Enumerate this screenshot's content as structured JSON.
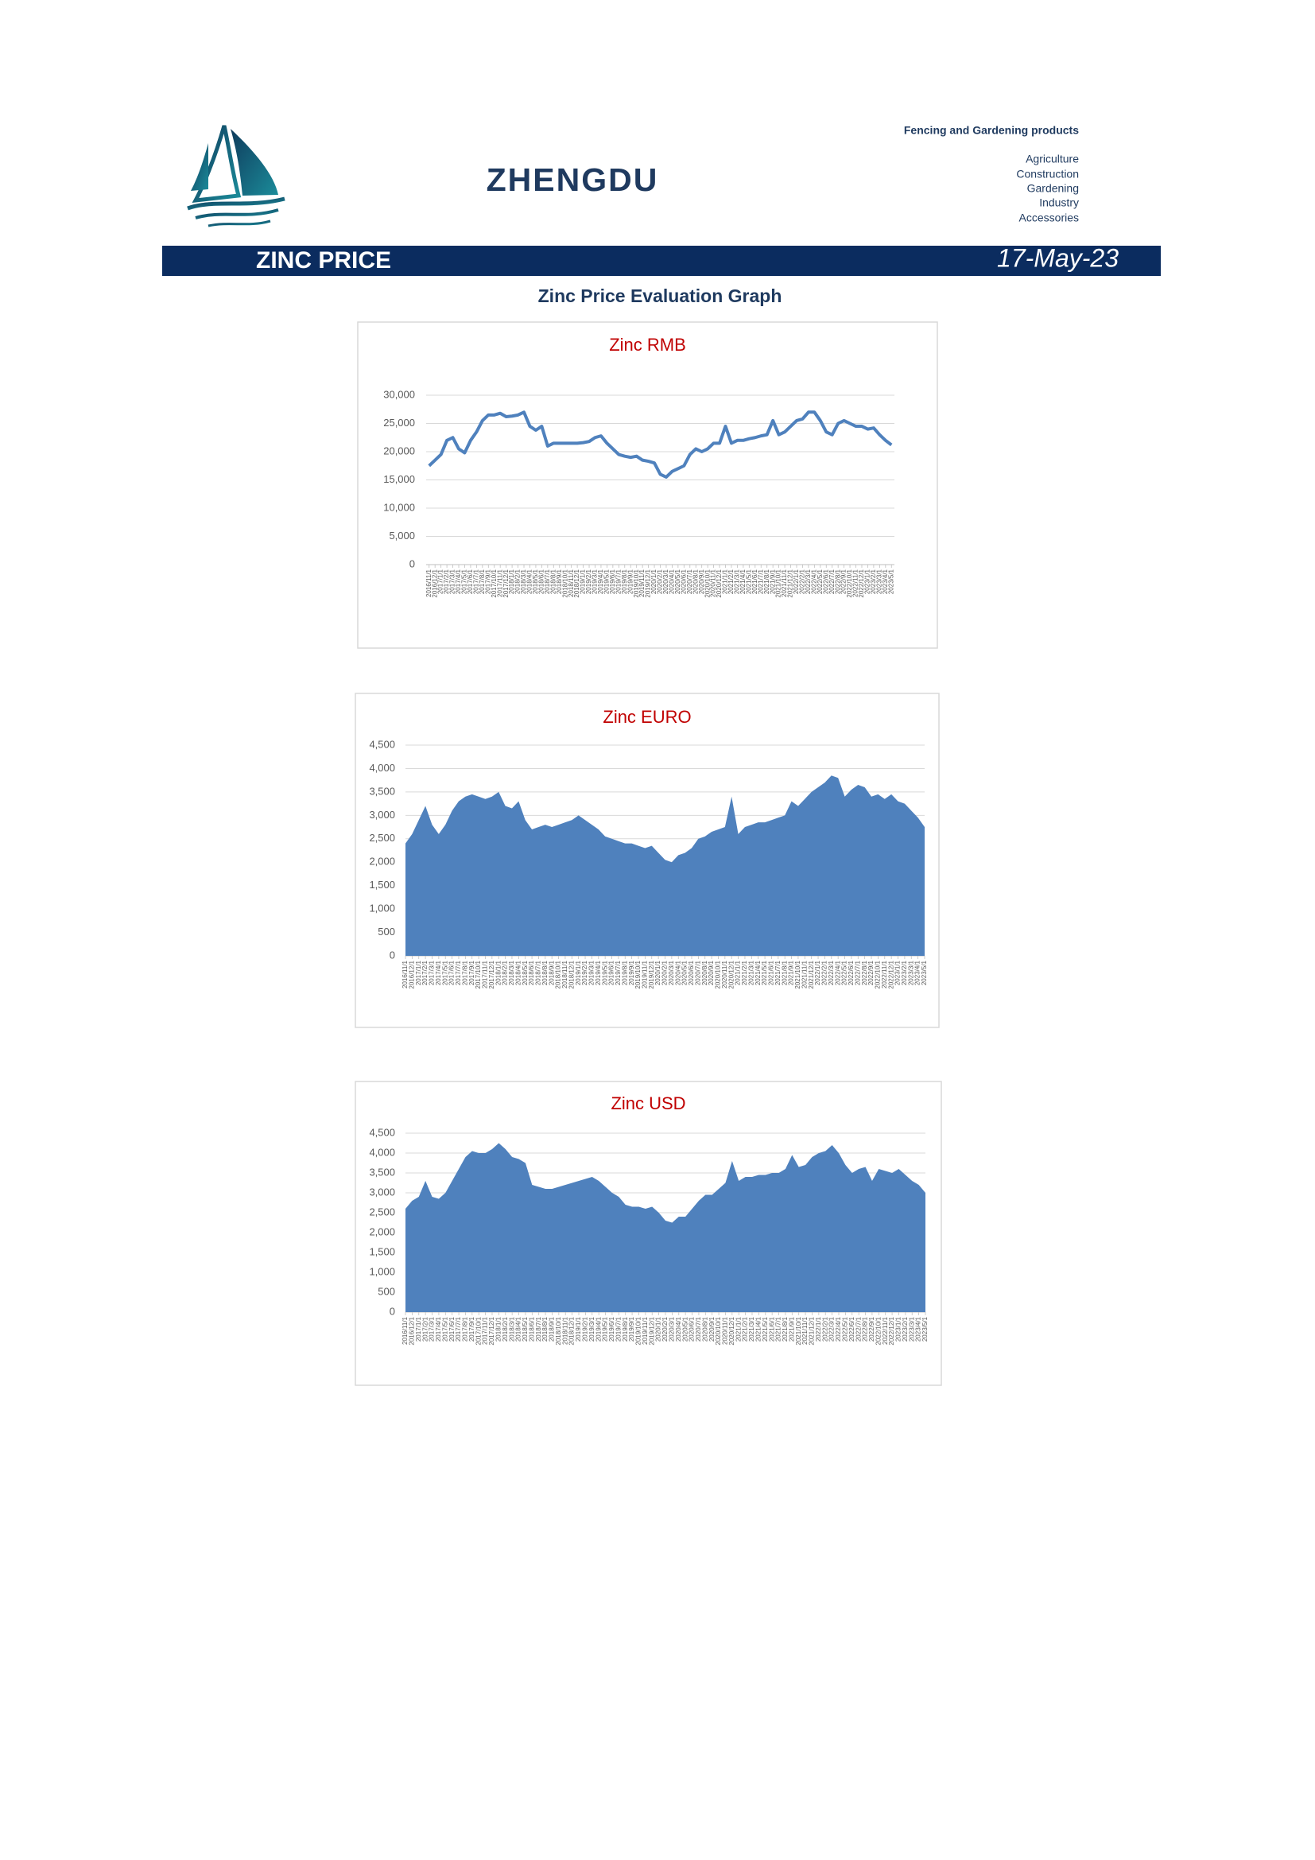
{
  "header": {
    "brand": "ZHENGDU",
    "tagline": "Fencing and Gardening products",
    "product_lines": [
      "Agriculture",
      "Construction",
      "Gardening",
      "Industry",
      "Accessories"
    ]
  },
  "banner": {
    "title": "ZINC PRICE",
    "date": "17-May-23"
  },
  "section_title": "Zinc Price Evaluation Graph",
  "chart_data": [
    {
      "type": "line",
      "title": "Zinc RMB",
      "title_color": "#c00000",
      "color": "#4f81bd",
      "grid": true,
      "categories": [
        "2016/11/1",
        "2016/12/1",
        "2017/1/1",
        "2017/2/1",
        "2017/3/1",
        "2017/4/1",
        "2017/5/1",
        "2017/6/1",
        "2017/7/1",
        "2017/8/1",
        "2017/9/1",
        "2017/10/1",
        "2017/11/1",
        "2017/12/1",
        "2018/1/1",
        "2018/2/1",
        "2018/3/1",
        "2018/4/1",
        "2018/5/1",
        "2018/6/1",
        "2018/7/1",
        "2018/8/1",
        "2018/9/1",
        "2018/10/1",
        "2018/11/1",
        "2018/12/1",
        "2019/1/1",
        "2019/2/1",
        "2019/3/1",
        "2019/4/1",
        "2019/5/1",
        "2019/6/1",
        "2019/7/1",
        "2019/8/1",
        "2019/9/1",
        "2019/10/1",
        "2019/11/1",
        "2019/12/1",
        "2020/1/1",
        "2020/2/1",
        "2020/3/1",
        "2020/4/1",
        "2020/5/1",
        "2020/6/1",
        "2020/7/1",
        "2020/8/1",
        "2020/9/1",
        "2020/10/1",
        "2020/11/1",
        "2020/12/1",
        "2021/1/1",
        "2021/2/1",
        "2021/3/1",
        "2021/4/1",
        "2021/5/1",
        "2021/6/1",
        "2021/7/1",
        "2021/8/1",
        "2021/9/1",
        "2021/10/1",
        "2021/11/1",
        "2021/12/1",
        "2022/1/1",
        "2022/2/1",
        "2022/3/1",
        "2022/4/1",
        "2022/5/1",
        "2022/6/1",
        "2022/7/1",
        "2022/8/1",
        "2022/9/1",
        "2022/10/1",
        "2022/11/1",
        "2022/12/1",
        "2023/1/1",
        "2023/2/1",
        "2023/3/1",
        "2023/4/1",
        "2023/5/1"
      ],
      "values": [
        17500,
        18500,
        19500,
        22000,
        22500,
        20500,
        19800,
        22000,
        23500,
        25500,
        26500,
        26500,
        26800,
        26200,
        26300,
        26500,
        27000,
        24500,
        23800,
        24500,
        21000,
        21500,
        21500,
        21500,
        21500,
        21500,
        21600,
        21800,
        22500,
        22800,
        21500,
        20500,
        19500,
        19200,
        19000,
        19200,
        18500,
        18300,
        18000,
        16000,
        15500,
        16500,
        17000,
        17500,
        19500,
        20500,
        20000,
        20500,
        21500,
        21500,
        24500,
        21500,
        22000,
        22000,
        22300,
        22500,
        22800,
        23000,
        25500,
        23000,
        23500,
        24500,
        25500,
        25800,
        27000,
        27000,
        25500,
        23500,
        23000,
        25000,
        25500,
        25000,
        24500,
        24500,
        24000,
        24200,
        23000,
        22000,
        21200
      ],
      "ylim": [
        0,
        30000
      ],
      "yticks": [
        0,
        {
          "value": 5000,
          "label": "5,000"
        },
        {
          "value": 10000,
          "label": "10,000"
        },
        {
          "value": 15000,
          "label": "15,000"
        },
        {
          "value": 20000,
          "label": "20,000"
        },
        {
          "value": 25000,
          "label": "25,000"
        },
        {
          "value": 30000,
          "label": "30,000"
        }
      ]
    },
    {
      "type": "area",
      "title": "Zinc EURO",
      "title_color": "#c00000",
      "color": "#4f81bd",
      "grid": true,
      "categories": [
        "2016/11/1",
        "2016/12/1",
        "2017/1/1",
        "2017/2/1",
        "2017/3/1",
        "2017/4/1",
        "2017/5/1",
        "2017/6/1",
        "2017/7/1",
        "2017/8/1",
        "2017/9/1",
        "2017/10/1",
        "2017/11/1",
        "2017/12/1",
        "2018/1/1",
        "2018/2/1",
        "2018/3/1",
        "2018/4/1",
        "2018/5/1",
        "2018/6/1",
        "2018/7/1",
        "2018/8/1",
        "2018/9/1",
        "2018/10/1",
        "2018/11/1",
        "2018/12/1",
        "2019/1/1",
        "2019/2/1",
        "2019/3/1",
        "2019/4/1",
        "2019/5/1",
        "2019/6/1",
        "2019/7/1",
        "2019/8/1",
        "2019/9/1",
        "2019/10/1",
        "2019/11/1",
        "2019/12/1",
        "2020/1/1",
        "2020/2/1",
        "2020/3/1",
        "2020/4/1",
        "2020/5/1",
        "2020/6/1",
        "2020/7/1",
        "2020/8/1",
        "2020/9/1",
        "2020/10/1",
        "2020/11/1",
        "2020/12/1",
        "2021/1/1",
        "2021/2/1",
        "2021/3/1",
        "2021/4/1",
        "2021/5/1",
        "2021/6/1",
        "2021/7/1",
        "2021/8/1",
        "2021/9/1",
        "2021/10/1",
        "2021/11/1",
        "2021/12/1",
        "2022/1/1",
        "2022/2/1",
        "2022/3/1",
        "2022/4/1",
        "2022/5/1",
        "2022/6/1",
        "2022/7/1",
        "2022/8/1",
        "2022/9/1",
        "2022/10/1",
        "2022/11/1",
        "2022/12/1",
        "2023/1/1",
        "2023/2/1",
        "2023/3/1",
        "2023/4/1",
        "2023/5/1"
      ],
      "values": [
        2400,
        2600,
        2900,
        3200,
        2800,
        2600,
        2800,
        3100,
        3300,
        3400,
        3450,
        3400,
        3350,
        3400,
        3500,
        3200,
        3150,
        3300,
        2900,
        2700,
        2750,
        2800,
        2750,
        2800,
        2850,
        2900,
        3000,
        2900,
        2800,
        2700,
        2550,
        2500,
        2450,
        2400,
        2400,
        2350,
        2300,
        2350,
        2200,
        2050,
        2000,
        2150,
        2200,
        2300,
        2500,
        2550,
        2650,
        2700,
        2750,
        3400,
        2600,
        2750,
        2800,
        2850,
        2850,
        2900,
        2950,
        3000,
        3300,
        3200,
        3350,
        3500,
        3600,
        3700,
        3850,
        3800,
        3400,
        3550,
        3650,
        3600,
        3400,
        3450,
        3350,
        3450,
        3300,
        3250,
        3100,
        2950,
        2750
      ],
      "ylim": [
        0,
        4500
      ],
      "yticks": [
        0,
        500,
        {
          "value": 1000,
          "label": "1,000"
        },
        {
          "value": 1500,
          "label": "1,500"
        },
        {
          "value": 2000,
          "label": "2,000"
        },
        {
          "value": 2500,
          "label": "2,500"
        },
        {
          "value": 3000,
          "label": "3,000"
        },
        {
          "value": 3500,
          "label": "3,500"
        },
        {
          "value": 4000,
          "label": "4,000"
        },
        {
          "value": 4500,
          "label": "4,500"
        }
      ]
    },
    {
      "type": "area",
      "title": "Zinc USD",
      "title_color": "#c00000",
      "color": "#4f81bd",
      "grid": true,
      "categories": [
        "2016/11/1",
        "2016/12/1",
        "2017/1/1",
        "2017/2/1",
        "2017/3/1",
        "2017/4/1",
        "2017/5/1",
        "2017/6/1",
        "2017/7/1",
        "2017/8/1",
        "2017/9/1",
        "2017/10/1",
        "2017/11/1",
        "2017/12/1",
        "2018/1/1",
        "2018/2/1",
        "2018/3/1",
        "2018/4/1",
        "2018/5/1",
        "2018/6/1",
        "2018/7/1",
        "2018/8/1",
        "2018/9/1",
        "2018/10/1",
        "2018/11/1",
        "2018/12/1",
        "2019/1/1",
        "2019/2/1",
        "2019/3/1",
        "2019/4/1",
        "2019/5/1",
        "2019/6/1",
        "2019/7/1",
        "2019/8/1",
        "2019/9/1",
        "2019/10/1",
        "2019/11/1",
        "2019/12/1",
        "2020/1/1",
        "2020/2/1",
        "2020/3/1",
        "2020/4/1",
        "2020/5/1",
        "2020/6/1",
        "2020/7/1",
        "2020/8/1",
        "2020/9/1",
        "2020/10/1",
        "2020/11/1",
        "2020/12/1",
        "2021/1/1",
        "2021/2/1",
        "2021/3/1",
        "2021/4/1",
        "2021/5/1",
        "2021/6/1",
        "2021/7/1",
        "2021/8/1",
        "2021/9/1",
        "2021/10/1",
        "2021/11/1",
        "2021/12/1",
        "2022/1/1",
        "2022/2/1",
        "2022/3/1",
        "2022/4/1",
        "2022/5/1",
        "2022/6/1",
        "2022/7/1",
        "2022/8/1",
        "2022/9/1",
        "2022/10/1",
        "2022/11/1",
        "2022/12/1",
        "2023/1/1",
        "2023/2/1",
        "2023/3/1",
        "2023/4/1",
        "2023/5/1"
      ],
      "values": [
        2600,
        2800,
        2900,
        3300,
        2900,
        2850,
        3000,
        3300,
        3600,
        3900,
        4050,
        4000,
        4000,
        4100,
        4250,
        4100,
        3900,
        3850,
        3750,
        3200,
        3150,
        3100,
        3100,
        3150,
        3200,
        3250,
        3300,
        3350,
        3400,
        3300,
        3150,
        3000,
        2900,
        2700,
        2650,
        2650,
        2600,
        2650,
        2500,
        2300,
        2250,
        2400,
        2400,
        2600,
        2800,
        2950,
        2950,
        3100,
        3250,
        3800,
        3300,
        3400,
        3400,
        3450,
        3450,
        3500,
        3500,
        3600,
        3950,
        3650,
        3700,
        3900,
        4000,
        4050,
        4200,
        4000,
        3700,
        3500,
        3600,
        3650,
        3300,
        3600,
        3550,
        3500,
        3600,
        3450,
        3300,
        3200,
        3000
      ],
      "ylim": [
        0,
        4500
      ],
      "yticks": [
        0,
        500,
        {
          "value": 1000,
          "label": "1,000"
        },
        {
          "value": 1500,
          "label": "1,500"
        },
        {
          "value": 2000,
          "label": "2,000"
        },
        {
          "value": 2500,
          "label": "2,500"
        },
        {
          "value": 3000,
          "label": "3,000"
        },
        {
          "value": 3500,
          "label": "3,500"
        },
        {
          "value": 4000,
          "label": "4,000"
        },
        {
          "value": 4500,
          "label": "4,500"
        }
      ]
    }
  ]
}
